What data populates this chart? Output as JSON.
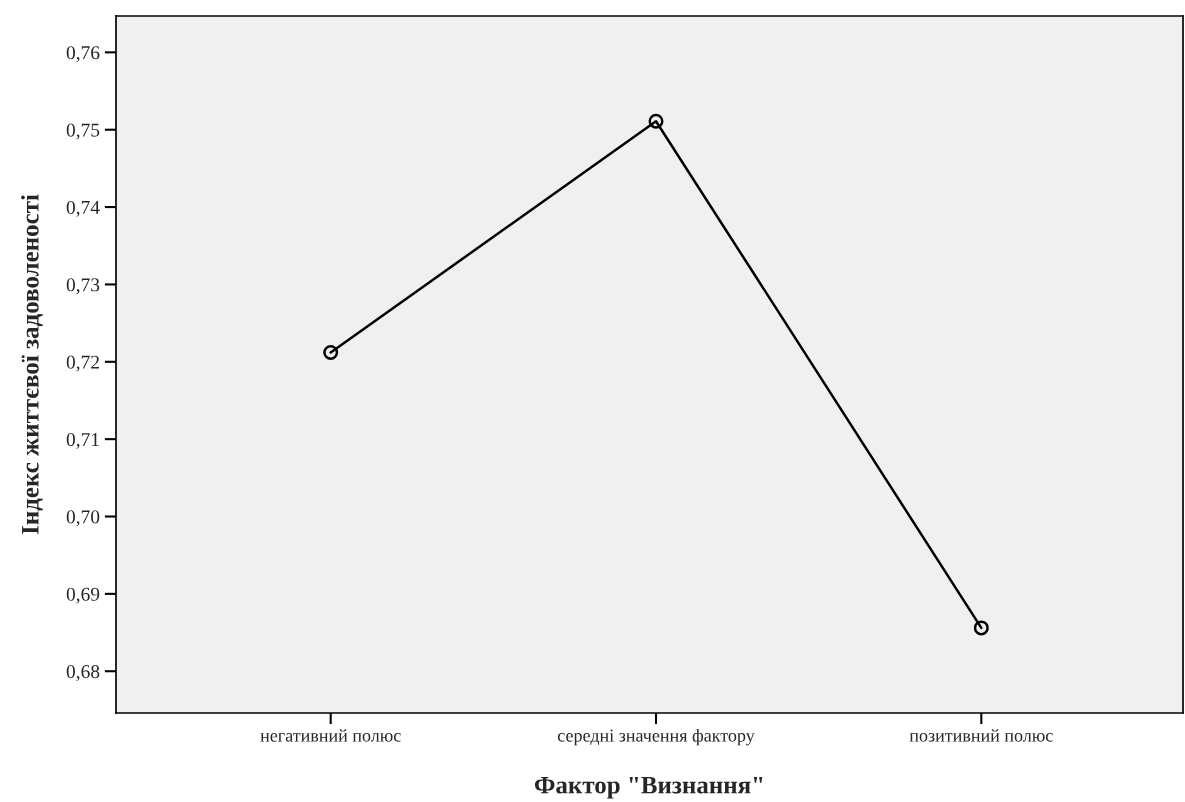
{
  "chart_data": {
    "type": "line",
    "xlabel": "Фактор \"Визнання\"",
    "ylabel": "Індекс життєвої задоволеності",
    "categories": [
      "негативний полюс",
      "середні значення фактору",
      "позитивний полюс"
    ],
    "series": [
      {
        "color": "#000000",
        "values": [
          0.7212,
          0.7511,
          0.6856
        ]
      }
    ],
    "marker": "circle",
    "line_style": "solid",
    "grid": false,
    "legend": false,
    "ylim": [
      0.6746,
      0.7647
    ],
    "yticks": [
      {
        "value": 0.68,
        "label": "0,68"
      },
      {
        "value": 0.69,
        "label": "0,69"
      },
      {
        "value": 0.7,
        "label": "0,70"
      },
      {
        "value": 0.71,
        "label": "0,71"
      },
      {
        "value": 0.72,
        "label": "0,72"
      },
      {
        "value": 0.73,
        "label": "0,73"
      },
      {
        "value": 0.74,
        "label": "0,74"
      },
      {
        "value": 0.75,
        "label": "0,75"
      },
      {
        "value": 0.76,
        "label": "0,76"
      }
    ]
  }
}
